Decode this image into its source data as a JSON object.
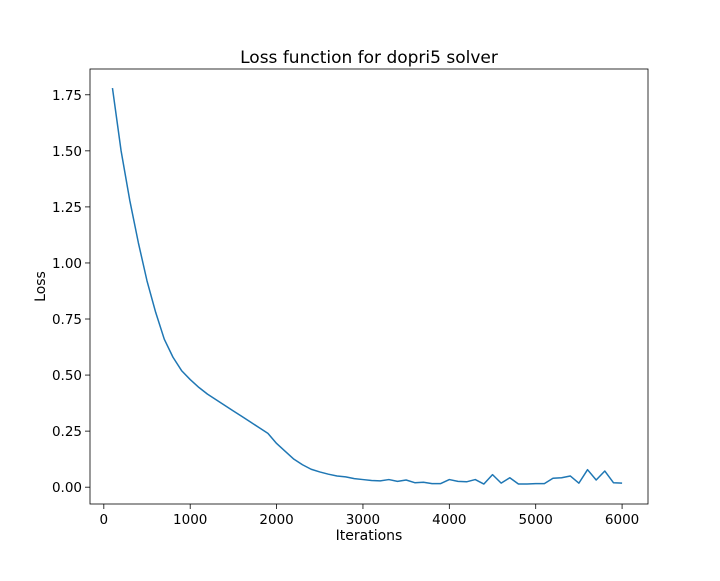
{
  "chart_data": {
    "type": "line",
    "title": "Loss function for dopri5 solver",
    "xlabel": "Iterations",
    "ylabel": "Loss",
    "xlim": [
      -160,
      6300
    ],
    "ylim": [
      -0.075,
      1.865
    ],
    "grid": false,
    "legend": "none",
    "xticks": [
      0,
      1000,
      2000,
      3000,
      4000,
      5000,
      6000
    ],
    "xtick_labels": [
      "0",
      "1000",
      "2000",
      "3000",
      "4000",
      "5000",
      "6000"
    ],
    "yticks": [
      0.0,
      0.25,
      0.5,
      0.75,
      1.0,
      1.25,
      1.5,
      1.75
    ],
    "ytick_labels": [
      "0.00",
      "0.25",
      "0.50",
      "0.75",
      "1.00",
      "1.25",
      "1.50",
      "1.75"
    ],
    "series": [
      {
        "color": "#1f77b4",
        "x": [
          100,
          200,
          300,
          400,
          500,
          600,
          700,
          800,
          900,
          1000,
          1100,
          1200,
          1300,
          1400,
          1500,
          1600,
          1700,
          1800,
          1900,
          2000,
          2100,
          2200,
          2300,
          2400,
          2500,
          2600,
          2700,
          2800,
          2900,
          3000,
          3100,
          3200,
          3300,
          3400,
          3500,
          3600,
          3700,
          3800,
          3900,
          4000,
          4100,
          4200,
          4300,
          4400,
          4500,
          4600,
          4700,
          4800,
          4900,
          5000,
          5100,
          5200,
          5300,
          5400,
          5500,
          5600,
          5700,
          5800,
          5900,
          6000
        ],
        "y": [
          1.78,
          1.5,
          1.28,
          1.09,
          0.92,
          0.78,
          0.66,
          0.58,
          0.52,
          0.48,
          0.445,
          0.415,
          0.39,
          0.365,
          0.34,
          0.315,
          0.29,
          0.265,
          0.24,
          0.195,
          0.16,
          0.125,
          0.1,
          0.08,
          0.068,
          0.058,
          0.05,
          0.046,
          0.038,
          0.034,
          0.03,
          0.028,
          0.034,
          0.026,
          0.032,
          0.02,
          0.022,
          0.016,
          0.016,
          0.034,
          0.026,
          0.024,
          0.034,
          0.014,
          0.056,
          0.018,
          0.042,
          0.014,
          0.014,
          0.016,
          0.016,
          0.04,
          0.042,
          0.05,
          0.018,
          0.078,
          0.032,
          0.072,
          0.02,
          0.018
        ]
      }
    ]
  }
}
